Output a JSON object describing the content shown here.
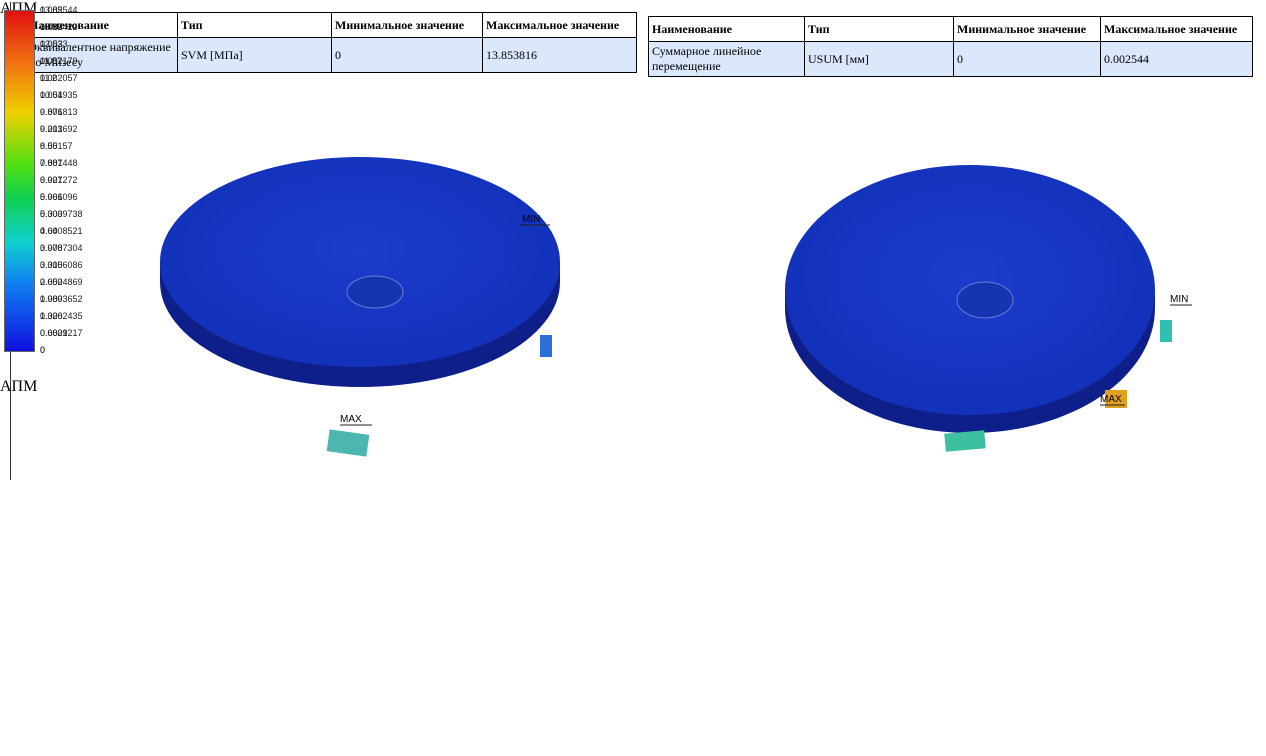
{
  "panels": [
    {
      "table": {
        "headers": [
          "Наименование",
          "Тип",
          "Минимальное значение",
          "Максимальное значение"
        ],
        "row": [
          "Эквивалентное напряжение по Мизесу",
          "SVM [МПа]",
          "0",
          "13.853816"
        ]
      },
      "logo": "АПМ",
      "legend": [
        "13.85",
        "13.19",
        "12.53",
        "11.87",
        "11.2",
        "10.54",
        "9.876",
        "9.213",
        "8.55",
        "7.887",
        "6.927",
        "5.966",
        "5.303",
        "4.64",
        "3.978",
        "3.315",
        "2.652",
        "1.989",
        "1.326",
        "0.6629",
        "0"
      ],
      "min_label": "MIN",
      "max_label": "MAX"
    },
    {
      "table": {
        "headers": [
          "Наименование",
          "Тип",
          "Минимальное значение",
          "Максимальное значение"
        ],
        "row": [
          "Суммарное линейное перемещение",
          "USUM [мм]",
          "0",
          "0.002544"
        ]
      },
      "logo": "АПМ",
      "legend": [
        "0.002544",
        "0.002422",
        "0.0023",
        "0.002179",
        "0.002057",
        "0.001935",
        "0.001813",
        "0.001692",
        "0.00157",
        "0.001448",
        "0.001272",
        "0.001096",
        "0.0009738",
        "0.0008521",
        "0.0007304",
        "0.0006086",
        "0.0004869",
        "0.0003652",
        "0.0002435",
        "0.0001217",
        "0"
      ],
      "min_label": "MIN",
      "max_label": "MAX"
    }
  ]
}
